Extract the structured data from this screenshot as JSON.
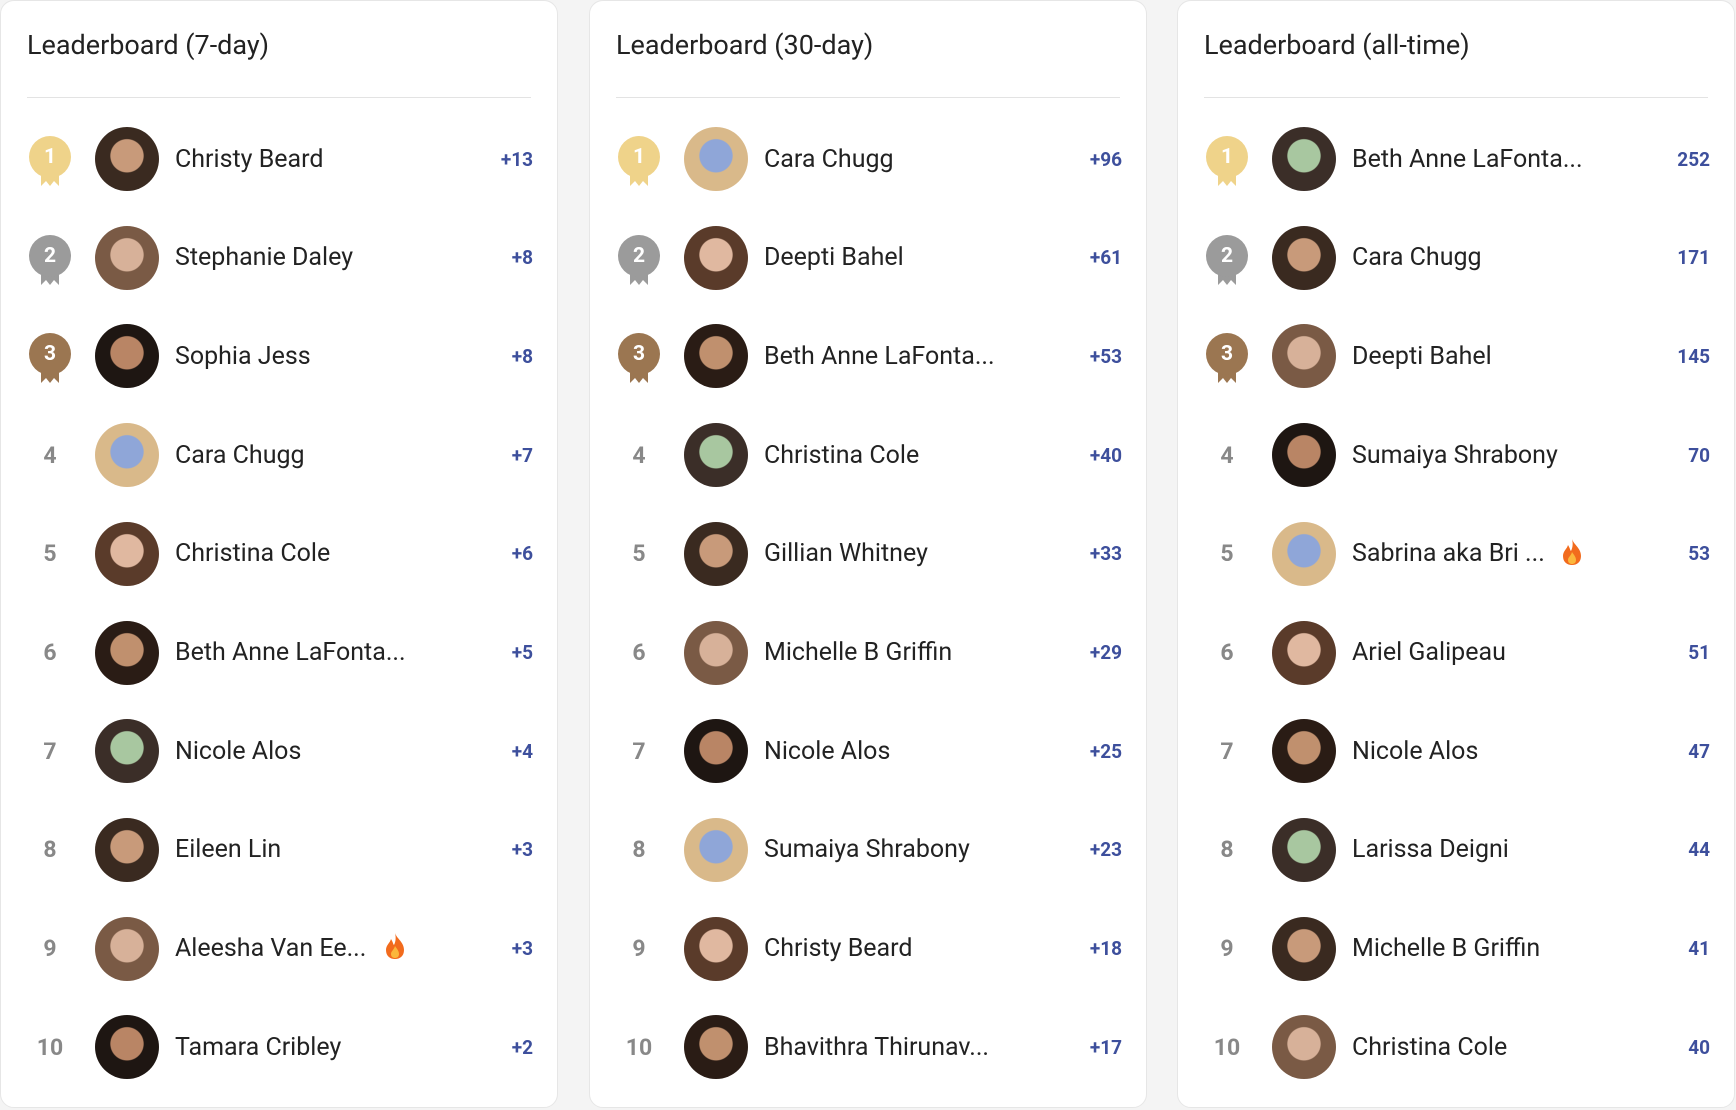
{
  "panels": [
    {
      "title": "Leaderboard (7-day)",
      "rows": [
        {
          "rank": "1",
          "name": "Christy Beard",
          "score": "+13"
        },
        {
          "rank": "2",
          "name": "Stephanie Daley",
          "score": "+8"
        },
        {
          "rank": "3",
          "name": "Sophia Jess",
          "score": "+8"
        },
        {
          "rank": "4",
          "name": "Cara Chugg",
          "score": "+7"
        },
        {
          "rank": "5",
          "name": "Christina Cole",
          "score": "+6"
        },
        {
          "rank": "6",
          "name": "Beth Anne LaFonta...",
          "score": "+5"
        },
        {
          "rank": "7",
          "name": "Nicole Alos",
          "score": "+4"
        },
        {
          "rank": "8",
          "name": "Eileen Lin",
          "score": "+3"
        },
        {
          "rank": "9",
          "name": "Aleesha Van Ee...",
          "score": "+3"
        },
        {
          "rank": "10",
          "name": "Tamara Cribley",
          "score": "+2"
        }
      ]
    },
    {
      "title": "Leaderboard (30-day)",
      "rows": [
        {
          "rank": "1",
          "name": "Cara Chugg",
          "score": "+96"
        },
        {
          "rank": "2",
          "name": "Deepti Bahel",
          "score": "+61"
        },
        {
          "rank": "3",
          "name": "Beth Anne LaFonta...",
          "score": "+53"
        },
        {
          "rank": "4",
          "name": "Christina Cole",
          "score": "+40"
        },
        {
          "rank": "5",
          "name": "Gillian Whitney",
          "score": "+33"
        },
        {
          "rank": "6",
          "name": "Michelle B Griffin",
          "score": "+29"
        },
        {
          "rank": "7",
          "name": "Nicole Alos",
          "score": "+25"
        },
        {
          "rank": "8",
          "name": "Sumaiya Shrabony",
          "score": "+23"
        },
        {
          "rank": "9",
          "name": "Christy Beard",
          "score": "+18"
        },
        {
          "rank": "10",
          "name": "Bhavithra Thirunav...",
          "score": "+17"
        }
      ]
    },
    {
      "title": "Leaderboard (all-time)",
      "rows": [
        {
          "rank": "1",
          "name": "Beth Anne LaFonta...",
          "score": "252"
        },
        {
          "rank": "2",
          "name": "Cara Chugg",
          "score": "171"
        },
        {
          "rank": "3",
          "name": "Deepti Bahel",
          "score": "145"
        },
        {
          "rank": "4",
          "name": "Sumaiya Shrabony",
          "score": "70"
        },
        {
          "rank": "5",
          "name": "Sabrina aka Bri ...",
          "score": "53"
        },
        {
          "rank": "6",
          "name": "Ariel Galipeau",
          "score": "51"
        },
        {
          "rank": "7",
          "name": "Nicole Alos",
          "score": "47"
        },
        {
          "rank": "8",
          "name": "Larissa Deigni",
          "score": "44"
        },
        {
          "rank": "9",
          "name": "Michelle B Griffin",
          "score": "41"
        },
        {
          "rank": "10",
          "name": "Christina Cole",
          "score": "40"
        }
      ]
    }
  ]
}
